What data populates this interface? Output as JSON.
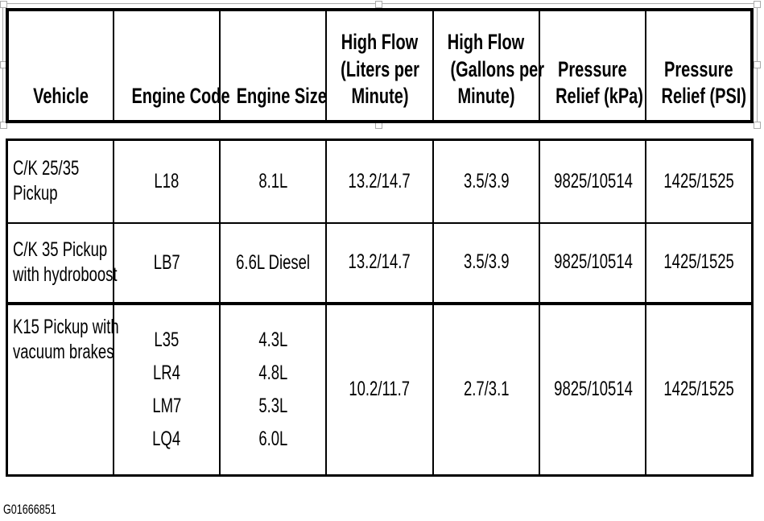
{
  "headers": [
    "Vehicle",
    "Engine Code",
    "Engine Size",
    "High Flow (Liters per Minute)",
    "High Flow (Gallons per Minute)",
    "Pressure Relief (kPa)",
    "Pressure Relief (PSI)"
  ],
  "header_lines": [
    [
      "Vehicle"
    ],
    [
      "Engine Code"
    ],
    [
      "Engine Size"
    ],
    [
      "High Flow",
      "(Liters per",
      "Minute)"
    ],
    [
      "High Flow",
      "(Gallons per",
      "Minute)"
    ],
    [
      "Pressure",
      "Relief (kPa)"
    ],
    [
      "Pressure",
      "Relief (PSI)"
    ]
  ],
  "rows": [
    {
      "vehicle": [
        "C/K 25/35",
        "Pickup"
      ],
      "engine_codes": [
        "L18"
      ],
      "engine_sizes": [
        "8.1L"
      ],
      "lpm": "13.2/14.7",
      "gpm": "3.5/3.9",
      "kpa": "9825/10514",
      "psi": "1425/1525"
    },
    {
      "vehicle": [
        "C/K 35 Pickup",
        "with hydroboost"
      ],
      "engine_codes": [
        "LB7"
      ],
      "engine_sizes": [
        "6.6L Diesel"
      ],
      "lpm": "13.2/14.7",
      "gpm": "3.5/3.9",
      "kpa": "9825/10514",
      "psi": "1425/1525"
    },
    {
      "vehicle": [
        "K15 Pickup with",
        "vacuum brakes"
      ],
      "engine_codes": [
        "L35",
        "LR4",
        "LM7",
        "LQ4"
      ],
      "engine_sizes": [
        "4.3L",
        "4.8L",
        "5.3L",
        "6.0L"
      ],
      "lpm": "10.2/11.7",
      "gpm": "2.7/3.1",
      "kpa": "9825/10514",
      "psi": "1425/1525"
    }
  ],
  "caption": "G01666851"
}
